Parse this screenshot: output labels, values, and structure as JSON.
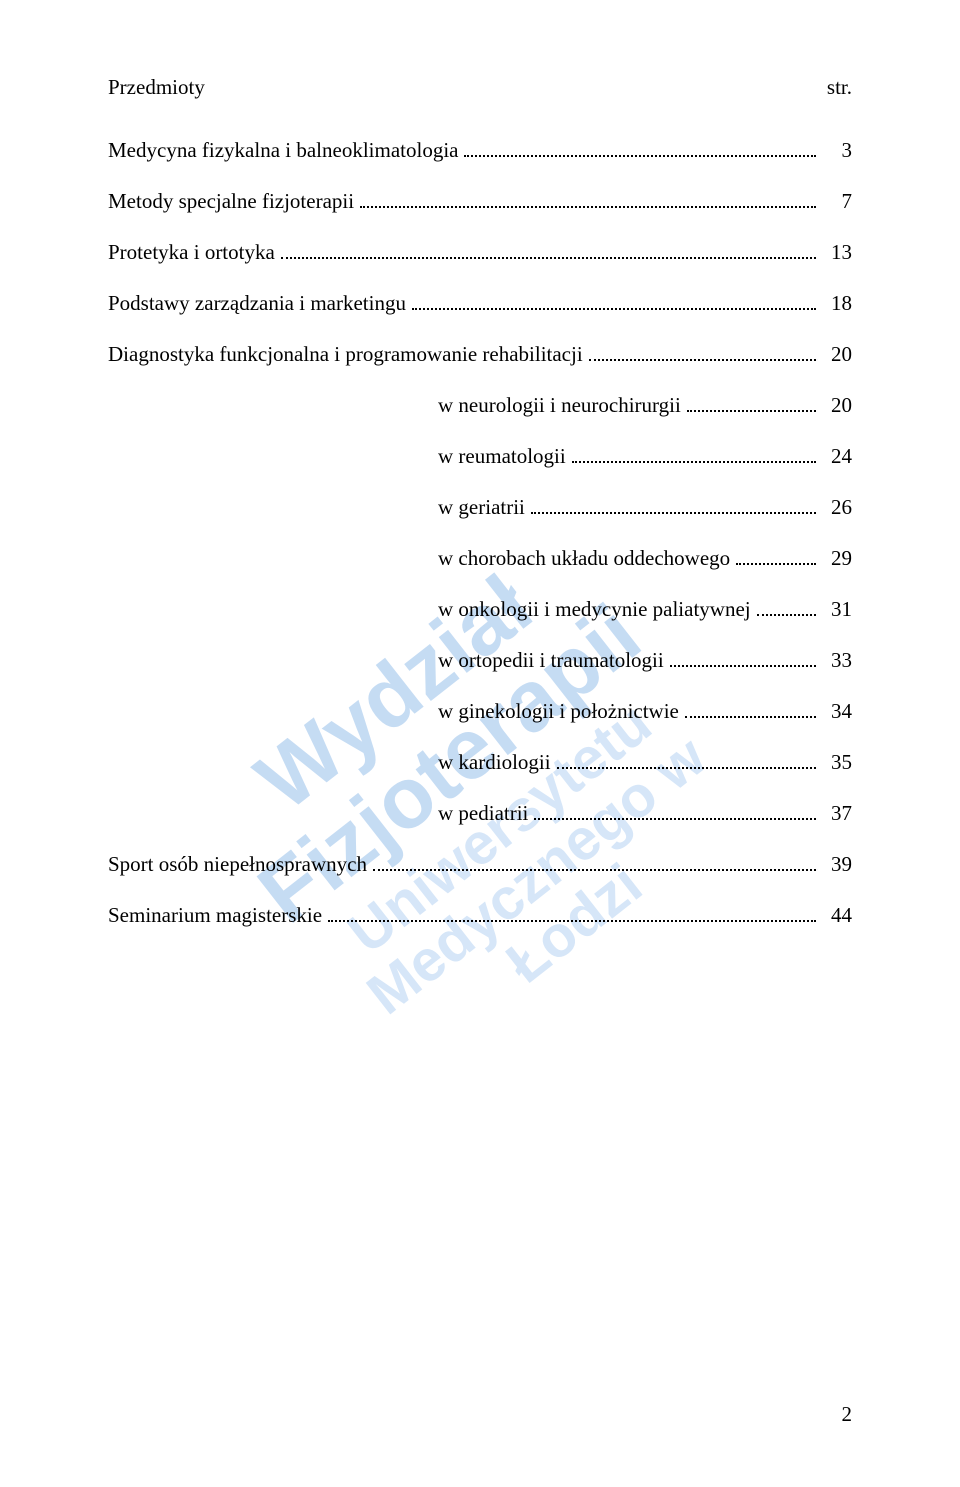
{
  "colors": {
    "text": "#000000",
    "background": "#ffffff",
    "watermark_primary": "#bcd6f2",
    "watermark_secondary": "#cfe2f7",
    "dot_leader": "#000000"
  },
  "typography": {
    "body_font": "Times New Roman",
    "body_size_pt": 16,
    "watermark_font": "Arial",
    "watermark_weight": "bold"
  },
  "header": {
    "left": "Przedmioty",
    "right": "str."
  },
  "watermark": {
    "line1": "Wydział Fizjoterapii",
    "line2": "Uniwersytetu Medycznego w Łodzi"
  },
  "toc": [
    {
      "label": "Medycyna fizykalna i balneoklimatologia",
      "page": "3",
      "indent": 0
    },
    {
      "label": "Metody specjalne fizjoterapii",
      "page": "7",
      "indent": 0
    },
    {
      "label": "Protetyka i ortotyka",
      "page": "13",
      "indent": 0
    },
    {
      "label": "Podstawy zarządzania i marketingu",
      "page": "18",
      "indent": 0
    },
    {
      "label": "Diagnostyka funkcjonalna i programowanie rehabilitacji",
      "page": "20",
      "indent": 0
    },
    {
      "label": "w neurologii i neurochirurgii",
      "page": "20",
      "indent": 1
    },
    {
      "label": "w reumatologii",
      "page": "24",
      "indent": 1
    },
    {
      "label": "w geriatrii",
      "page": "26",
      "indent": 1
    },
    {
      "label": "w chorobach układu oddechowego",
      "page": "29",
      "indent": 1
    },
    {
      "label": "w onkologii i medycynie paliatywnej",
      "page": "31",
      "indent": 1
    },
    {
      "label": "w ortopedii i traumatologii",
      "page": "33",
      "indent": 1
    },
    {
      "label": "w ginekologii i położnictwie",
      "page": "34",
      "indent": 1
    },
    {
      "label": "w kardiologii",
      "page": "35",
      "indent": 1
    },
    {
      "label": "w pediatrii",
      "page": "37",
      "indent": 1
    },
    {
      "label": "Sport osób niepełnosprawnych",
      "page": "39",
      "indent": 0
    },
    {
      "label": "Seminarium magisterskie",
      "page": "44",
      "indent": 0
    }
  ],
  "footer": {
    "page_number": "2"
  }
}
